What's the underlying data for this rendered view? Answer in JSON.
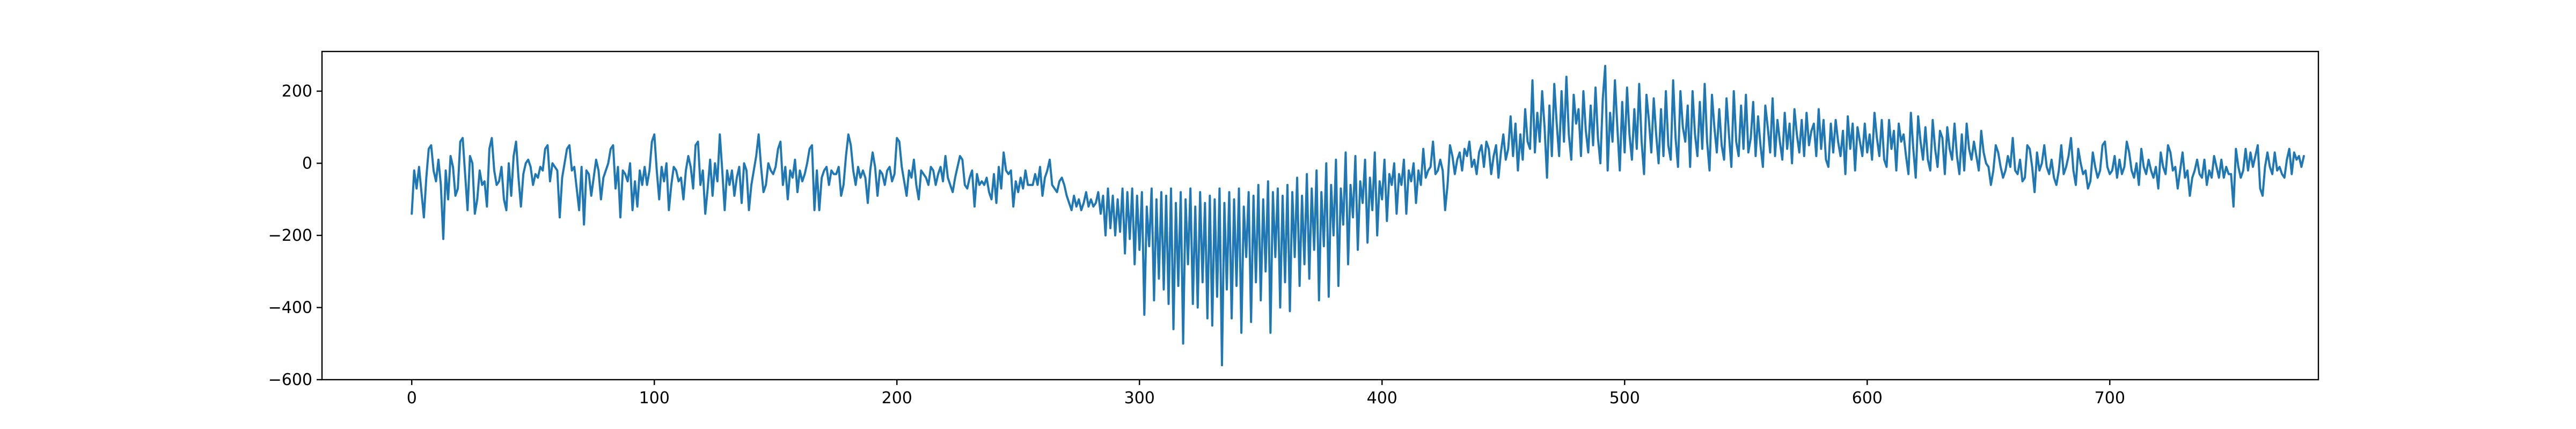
{
  "chart_data": {
    "type": "line",
    "title": "",
    "xlabel": "",
    "ylabel": "",
    "xlim": [
      -37,
      786
    ],
    "ylim": [
      -600,
      310
    ],
    "x_ticks": [
      0,
      100,
      200,
      300,
      400,
      500,
      600,
      700
    ],
    "x_tick_labels": [
      "0",
      "100",
      "200",
      "300",
      "400",
      "500",
      "600",
      "700"
    ],
    "y_ticks": [
      200,
      0,
      -200,
      -400,
      -600
    ],
    "y_tick_labels": [
      "200",
      "0",
      "−200",
      "−400",
      "−600"
    ],
    "grid": false,
    "series": [
      {
        "color": "#1f77b4",
        "x_start": 0,
        "x_step": 1,
        "values": [
          -140,
          -20,
          -70,
          -10,
          -80,
          -150,
          -40,
          40,
          50,
          -20,
          -50,
          10,
          -60,
          -210,
          -20,
          -100,
          20,
          -10,
          -90,
          -70,
          60,
          70,
          -30,
          -130,
          20,
          0,
          -140,
          -100,
          -20,
          -60,
          -50,
          -120,
          40,
          70,
          -20,
          -60,
          -50,
          -10,
          -100,
          -130,
          0,
          -90,
          20,
          60,
          -40,
          -120,
          -30,
          0,
          10,
          -10,
          -60,
          -30,
          -40,
          -10,
          -20,
          40,
          50,
          -50,
          0,
          -10,
          -20,
          -150,
          -40,
          0,
          40,
          50,
          -20,
          -10,
          -70,
          -130,
          -10,
          -170,
          -20,
          -30,
          -90,
          -40,
          10,
          -20,
          -100,
          -40,
          -20,
          0,
          40,
          50,
          -70,
          -10,
          -150,
          -20,
          -30,
          -50,
          0,
          -130,
          -50,
          -120,
          -20,
          -60,
          -10,
          -60,
          -20,
          60,
          80,
          -20,
          -100,
          -10,
          -50,
          0,
          -130,
          -60,
          -10,
          -20,
          -50,
          -40,
          -100,
          -20,
          20,
          -10,
          -70,
          50,
          60,
          -60,
          -20,
          -140,
          -70,
          10,
          -90,
          0,
          -50,
          80,
          -20,
          -130,
          -20,
          -60,
          -20,
          -90,
          -40,
          -10,
          -110,
          0,
          -20,
          -130,
          -60,
          -20,
          20,
          80,
          -10,
          -80,
          -60,
          0,
          -20,
          -30,
          -10,
          40,
          60,
          -60,
          -10,
          -100,
          -20,
          -40,
          10,
          -80,
          -20,
          -50,
          -30,
          0,
          40,
          50,
          -130,
          -20,
          -130,
          -40,
          -20,
          -10,
          -60,
          -20,
          -30,
          -30,
          -10,
          -90,
          -60,
          20,
          80,
          50,
          -20,
          -60,
          -10,
          -40,
          -20,
          -40,
          -110,
          -20,
          30,
          -10,
          -90,
          -20,
          -30,
          -60,
          -20,
          -10,
          -50,
          -30,
          70,
          60,
          -10,
          -50,
          -90,
          -20,
          -40,
          10,
          -60,
          -100,
          -20,
          -30,
          -40,
          -60,
          -10,
          -20,
          -60,
          -30,
          -10,
          -50,
          20,
          -40,
          -60,
          -80,
          -40,
          -10,
          20,
          10,
          -60,
          -70,
          -40,
          -20,
          -120,
          -30,
          -60,
          -50,
          -60,
          -40,
          -80,
          -100,
          -30,
          -110,
          -10,
          -70,
          30,
          -20,
          -30,
          -20,
          -120,
          -50,
          -80,
          -40,
          -70,
          -20,
          -60,
          -60,
          -60,
          -30,
          -60,
          -10,
          -90,
          -40,
          -20,
          10,
          -60,
          -70,
          -80,
          -50,
          -40,
          -60,
          -90,
          -110,
          -130,
          -90,
          -120,
          -100,
          -130,
          -110,
          -80,
          -120,
          -100,
          -120,
          -110,
          -80,
          -140,
          -90,
          -200,
          -70,
          -180,
          -90,
          -200,
          -100,
          -190,
          -70,
          -250,
          -80,
          -210,
          -70,
          -280,
          -90,
          -240,
          -80,
          -420,
          -120,
          -230,
          -70,
          -380,
          -100,
          -320,
          -80,
          -350,
          -90,
          -390,
          -70,
          -460,
          -110,
          -340,
          -80,
          -500,
          -100,
          -280,
          -70,
          -390,
          -120,
          -400,
          -80,
          -330,
          -110,
          -430,
          -90,
          -450,
          -100,
          -370,
          -70,
          -560,
          -110,
          -350,
          -80,
          -430,
          -100,
          -340,
          -70,
          -470,
          -120,
          -260,
          -80,
          -440,
          -90,
          -330,
          -60,
          -380,
          -100,
          -300,
          -50,
          -470,
          -80,
          -260,
          -70,
          -400,
          -90,
          -330,
          -60,
          -410,
          -80,
          -260,
          -40,
          -340,
          -90,
          -280,
          -30,
          -320,
          -70,
          -240,
          -20,
          -380,
          -80,
          -230,
          0,
          -370,
          -60,
          -200,
          10,
          -340,
          -70,
          -170,
          30,
          -280,
          -60,
          -150,
          20,
          -240,
          -50,
          -110,
          10,
          -220,
          -40,
          -130,
          30,
          -200,
          -50,
          -100,
          10,
          -160,
          -30,
          -60,
          0,
          -140,
          -30,
          -60,
          10,
          -140,
          -20,
          -50,
          0,
          -110,
          -20,
          -60,
          40,
          -40,
          -20,
          -10,
          60,
          -30,
          -20,
          10,
          -20,
          -130,
          -60,
          50,
          20,
          -30,
          10,
          30,
          -20,
          40,
          20,
          60,
          -10,
          10,
          -30,
          30,
          50,
          -10,
          60,
          40,
          -30,
          20,
          50,
          -40,
          30,
          80,
          10,
          40,
          130,
          20,
          110,
          -20,
          80,
          10,
          150,
          60,
          40,
          230,
          30,
          140,
          60,
          200,
          100,
          -40,
          160,
          20,
          220,
          110,
          20,
          200,
          60,
          240,
          80,
          10,
          190,
          110,
          150,
          20,
          200,
          90,
          30,
          160,
          50,
          210,
          70,
          0,
          180,
          270,
          -20,
          140,
          60,
          230,
          100,
          -20,
          170,
          30,
          210,
          80,
          10,
          150,
          40,
          220,
          60,
          -30,
          190,
          120,
          30,
          180,
          80,
          0,
          150,
          20,
          200,
          50,
          10,
          230,
          70,
          -10,
          200,
          100,
          60,
          160,
          -10,
          200,
          80,
          20,
          170,
          40,
          220,
          60,
          -20,
          190,
          100,
          30,
          150,
          50,
          10,
          180,
          80,
          -10,
          200,
          60,
          20,
          160,
          40,
          190,
          30,
          70,
          170,
          20,
          130,
          50,
          -10,
          160,
          100,
          30,
          180,
          20,
          120,
          60,
          10,
          140,
          40,
          110,
          0,
          150,
          80,
          30,
          120,
          20,
          140,
          50,
          90,
          110,
          20,
          150,
          40,
          120,
          10,
          -10,
          110,
          30,
          120,
          60,
          20,
          90,
          -30,
          130,
          40,
          110,
          -20,
          100,
          60,
          20,
          110,
          30,
          80,
          10,
          140,
          70,
          20,
          120,
          10,
          -10,
          120,
          40,
          90,
          -20,
          110,
          60,
          80,
          20,
          -30,
          140,
          40,
          -40,
          130,
          60,
          10,
          100,
          10,
          -20,
          120,
          40,
          -10,
          90,
          70,
          -30,
          100,
          40,
          10,
          110,
          20,
          -30,
          80,
          -20,
          110,
          40,
          10,
          60,
          20,
          -20,
          90,
          30,
          0,
          -10,
          -60,
          -20,
          50,
          30,
          -10,
          -40,
          -20,
          20,
          -10,
          70,
          -20,
          -30,
          10,
          -50,
          -40,
          50,
          40,
          -10,
          -80,
          30,
          -20,
          0,
          50,
          -10,
          -30,
          10,
          -40,
          -60,
          -20,
          50,
          -30,
          -10,
          20,
          70,
          -20,
          -60,
          40,
          0,
          -30,
          -20,
          -70,
          -50,
          30,
          -10,
          -40,
          -20,
          50,
          60,
          -10,
          -30,
          -20,
          20,
          -40,
          10,
          -30,
          -10,
          60,
          30,
          -20,
          -40,
          0,
          -60,
          40,
          -10,
          -30,
          10,
          -20,
          -40,
          -10,
          -70,
          30,
          -10,
          -30,
          50,
          30,
          -20,
          -10,
          -70,
          -20,
          30,
          -40,
          -20,
          -90,
          -40,
          -20,
          10,
          -30,
          -40,
          10,
          -60,
          -20,
          -40,
          20,
          -10,
          -40,
          10,
          -40,
          -10,
          -30,
          -30,
          -120,
          40,
          -10,
          -40,
          -20,
          40,
          -20,
          30,
          -10,
          20,
          50,
          -70,
          -90,
          -10,
          30,
          -10,
          -30,
          30,
          -20,
          -10,
          -30,
          -40,
          10,
          40,
          -30,
          30,
          10,
          20,
          -10,
          20
        ]
      }
    ]
  }
}
